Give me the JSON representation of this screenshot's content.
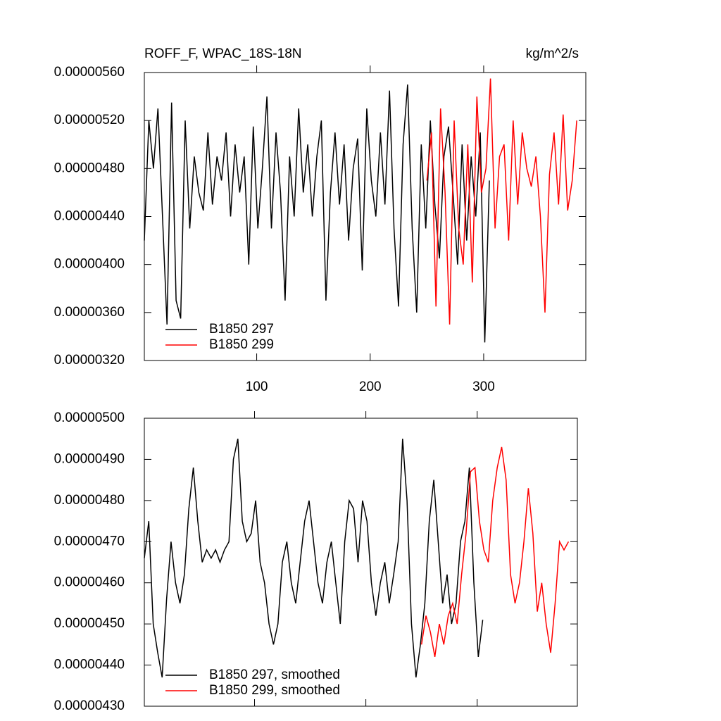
{
  "chart_data": [
    {
      "type": "line",
      "title": "ROFF_F, WPAC_18S-18N",
      "units": "kg/m^2/s",
      "xlim": [
        1,
        390
      ],
      "xticks": [
        100,
        200,
        300
      ],
      "show_xtick_labels": true,
      "ylim": [
        3.2e-06,
        5.6e-06
      ],
      "yticks": [
        {
          "value": 3.2e-06,
          "label": "0.00000320"
        },
        {
          "value": 3.6e-06,
          "label": "0.00000360"
        },
        {
          "value": 4e-06,
          "label": "0.00000400"
        },
        {
          "value": 4.4e-06,
          "label": "0.00000440"
        },
        {
          "value": 4.8e-06,
          "label": "0.00000480"
        },
        {
          "value": 5.2e-06,
          "label": "0.00000520"
        },
        {
          "value": 5.6e-06,
          "label": "0.00000560"
        }
      ],
      "legend": "lower-left",
      "series": [
        {
          "name": "B1850 297",
          "color": "#000000",
          "x": [
            1,
            5,
            9,
            13,
            17,
            21,
            25,
            29,
            33,
            37,
            41,
            45,
            49,
            53,
            57,
            61,
            65,
            69,
            73,
            77,
            81,
            85,
            89,
            93,
            97,
            101,
            105,
            109,
            113,
            117,
            121,
            125,
            129,
            133,
            137,
            141,
            145,
            149,
            153,
            157,
            161,
            165,
            169,
            173,
            177,
            181,
            185,
            189,
            193,
            197,
            201,
            205,
            209,
            213,
            217,
            221,
            225,
            229,
            233,
            237,
            241,
            245,
            249,
            253,
            257,
            261,
            265,
            269,
            273,
            277,
            281,
            285,
            289,
            293,
            297,
            301,
            305
          ],
          "values": [
            4.2e-06,
            5.2e-06,
            4.8e-06,
            5.3e-06,
            4.4e-06,
            3.5e-06,
            5.35e-06,
            3.7e-06,
            3.55e-06,
            5.2e-06,
            4.3e-06,
            4.9e-06,
            4.6e-06,
            4.45e-06,
            5.1e-06,
            4.5e-06,
            4.9e-06,
            4.7e-06,
            5.1e-06,
            4.4e-06,
            5e-06,
            4.6e-06,
            4.9e-06,
            4e-06,
            5.15e-06,
            4.3e-06,
            4.8e-06,
            5.4e-06,
            4.3e-06,
            5.1e-06,
            4.6e-06,
            3.7e-06,
            4.9e-06,
            4.4e-06,
            5.3e-06,
            4.6e-06,
            5e-06,
            4.4e-06,
            4.9e-06,
            5.2e-06,
            3.7e-06,
            4.6e-06,
            5.1e-06,
            4.5e-06,
            5e-06,
            4.2e-06,
            4.8e-06,
            5.05e-06,
            3.95e-06,
            5.3e-06,
            4.7e-06,
            4.4e-06,
            5.1e-06,
            4.5e-06,
            5.45e-06,
            4.3e-06,
            3.65e-06,
            5e-06,
            5.5e-06,
            4.3e-06,
            3.6e-06,
            5e-06,
            4.3e-06,
            5.2e-06,
            4.5e-06,
            4.05e-06,
            4.9e-06,
            5.15e-06,
            4.6e-06,
            4e-06,
            5e-06,
            4.2e-06,
            4.9e-06,
            4.4e-06,
            5.1e-06,
            3.35e-06,
            4.7e-06
          ]
        },
        {
          "name": "B1850 299",
          "color": "#ff0000",
          "x": [
            250,
            254,
            258,
            262,
            266,
            270,
            274,
            278,
            282,
            286,
            290,
            294,
            298,
            302,
            306,
            310,
            314,
            318,
            322,
            326,
            330,
            334,
            338,
            342,
            346,
            350,
            354,
            358,
            362,
            366,
            370,
            374,
            378,
            382
          ],
          "values": [
            4.7e-06,
            5.1e-06,
            3.65e-06,
            5.3e-06,
            4.6e-06,
            3.5e-06,
            5.2e-06,
            4.3e-06,
            4e-06,
            5e-06,
            3.85e-06,
            5.4e-06,
            4.6e-06,
            4.8e-06,
            5.55e-06,
            4.3e-06,
            4.9e-06,
            5e-06,
            4.2e-06,
            5.2e-06,
            4.5e-06,
            5.1e-06,
            4.8e-06,
            4.65e-06,
            4.9e-06,
            4.4e-06,
            3.6e-06,
            4.75e-06,
            5.1e-06,
            4.5e-06,
            5.25e-06,
            4.45e-06,
            4.7e-06,
            5.2e-06
          ]
        }
      ]
    },
    {
      "type": "line",
      "xlim": [
        1,
        390
      ],
      "xticks": [
        100,
        200,
        300
      ],
      "show_xtick_labels": false,
      "ylim": [
        4.3e-06,
        5e-06
      ],
      "yticks": [
        {
          "value": 4.3e-06,
          "label": "0.00000430"
        },
        {
          "value": 4.4e-06,
          "label": "0.00000440"
        },
        {
          "value": 4.5e-06,
          "label": "0.00000450"
        },
        {
          "value": 4.6e-06,
          "label": "0.00000460"
        },
        {
          "value": 4.7e-06,
          "label": "0.00000470"
        },
        {
          "value": 4.8e-06,
          "label": "0.00000480"
        },
        {
          "value": 4.9e-06,
          "label": "0.00000490"
        },
        {
          "value": 5e-06,
          "label": "0.00000500"
        }
      ],
      "legend": "lower-left",
      "series": [
        {
          "name": "B1850 297, smoothed",
          "color": "#000000",
          "x": [
            1,
            5,
            9,
            13,
            17,
            21,
            25,
            29,
            33,
            37,
            41,
            45,
            49,
            53,
            57,
            61,
            65,
            69,
            73,
            77,
            81,
            85,
            89,
            93,
            97,
            101,
            105,
            109,
            113,
            117,
            121,
            125,
            129,
            133,
            137,
            141,
            145,
            149,
            153,
            157,
            161,
            165,
            169,
            173,
            177,
            181,
            185,
            189,
            193,
            197,
            201,
            205,
            209,
            213,
            217,
            221,
            225,
            229,
            233,
            237,
            241,
            245,
            249,
            253,
            257,
            261,
            265,
            269,
            273,
            277,
            281,
            285,
            289,
            293,
            297,
            301,
            305
          ],
          "values": [
            4.66e-06,
            4.75e-06,
            4.5e-06,
            4.43e-06,
            4.37e-06,
            4.56e-06,
            4.7e-06,
            4.6e-06,
            4.55e-06,
            4.62e-06,
            4.78e-06,
            4.88e-06,
            4.75e-06,
            4.65e-06,
            4.68e-06,
            4.66e-06,
            4.68e-06,
            4.65e-06,
            4.68e-06,
            4.7e-06,
            4.9e-06,
            4.95e-06,
            4.75e-06,
            4.7e-06,
            4.72e-06,
            4.8e-06,
            4.65e-06,
            4.6e-06,
            4.5e-06,
            4.45e-06,
            4.5e-06,
            4.65e-06,
            4.7e-06,
            4.6e-06,
            4.55e-06,
            4.65e-06,
            4.75e-06,
            4.8e-06,
            4.7e-06,
            4.6e-06,
            4.55e-06,
            4.65e-06,
            4.7e-06,
            4.6e-06,
            4.5e-06,
            4.7e-06,
            4.8e-06,
            4.78e-06,
            4.65e-06,
            4.8e-06,
            4.75e-06,
            4.6e-06,
            4.52e-06,
            4.6e-06,
            4.65e-06,
            4.55e-06,
            4.62e-06,
            4.7e-06,
            4.95e-06,
            4.8e-06,
            4.5e-06,
            4.37e-06,
            4.45e-06,
            4.55e-06,
            4.75e-06,
            4.85e-06,
            4.7e-06,
            4.55e-06,
            4.62e-06,
            4.5e-06,
            4.55e-06,
            4.7e-06,
            4.75e-06,
            4.88e-06,
            4.6e-06,
            4.42e-06,
            4.51e-06
          ]
        },
        {
          "name": "B1850 299, smoothed",
          "color": "#ff0000",
          "x": [
            250,
            254,
            258,
            262,
            266,
            270,
            274,
            278,
            282,
            286,
            290,
            294,
            298,
            302,
            306,
            310,
            314,
            318,
            322,
            326,
            330,
            334,
            338,
            342,
            346,
            350,
            354,
            358,
            362,
            366,
            370,
            374,
            378,
            382
          ],
          "values": [
            4.45e-06,
            4.52e-06,
            4.48e-06,
            4.42e-06,
            4.5e-06,
            4.45e-06,
            4.52e-06,
            4.55e-06,
            4.5e-06,
            4.62e-06,
            4.72e-06,
            4.87e-06,
            4.88e-06,
            4.75e-06,
            4.68e-06,
            4.65e-06,
            4.8e-06,
            4.88e-06,
            4.93e-06,
            4.85e-06,
            4.62e-06,
            4.55e-06,
            4.6e-06,
            4.7e-06,
            4.83e-06,
            4.72e-06,
            4.53e-06,
            4.6e-06,
            4.5e-06,
            4.43e-06,
            4.55e-06,
            4.7e-06,
            4.68e-06,
            4.7e-06
          ]
        }
      ]
    }
  ]
}
